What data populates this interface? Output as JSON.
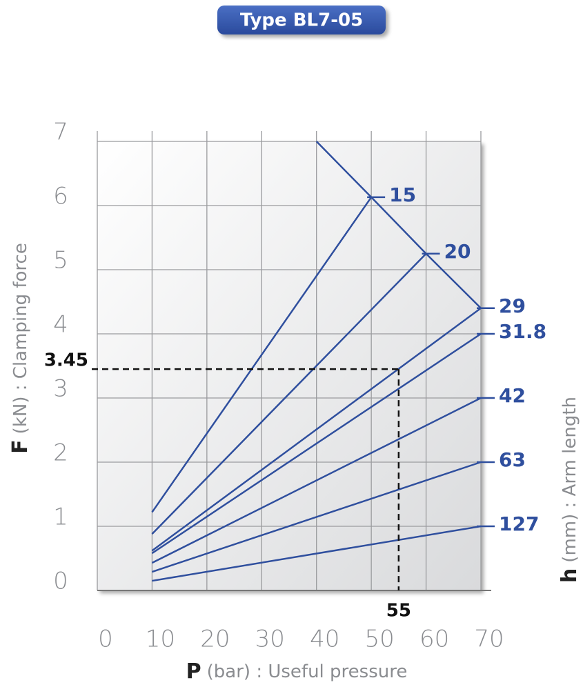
{
  "chart_data": {
    "type": "line",
    "title": "Type BL7-05",
    "y_label_symbol": "F",
    "y_label": "(kN) : Clamping force",
    "x_label_symbol": "P",
    "x_label": "(bar) : Useful pressure",
    "legend_title_symbol": "h",
    "legend_title": "(mm) : Arm length",
    "xlim": [
      0,
      70
    ],
    "ylim": [
      0,
      7
    ],
    "xticks": [
      0,
      10,
      20,
      30,
      40,
      50,
      60,
      70
    ],
    "yticks": [
      0,
      1,
      2,
      3,
      4,
      5,
      6,
      7
    ],
    "grid": true,
    "color": "#2f4f9e",
    "series": [
      {
        "name": "15",
        "x": [
          10,
          50
        ],
        "values": [
          1.22,
          6.13
        ]
      },
      {
        "name": "20",
        "x": [
          10,
          60
        ],
        "values": [
          0.88,
          5.25
        ]
      },
      {
        "name": "29",
        "x": [
          10,
          70
        ],
        "values": [
          0.62,
          4.4
        ]
      },
      {
        "name": "31.8",
        "x": [
          10,
          70
        ],
        "values": [
          0.58,
          4.0
        ]
      },
      {
        "name": "42",
        "x": [
          10,
          70
        ],
        "values": [
          0.43,
          3.0
        ]
      },
      {
        "name": "63",
        "x": [
          10,
          70
        ],
        "values": [
          0.29,
          2.0
        ]
      },
      {
        "name": "127",
        "x": [
          10,
          70
        ],
        "values": [
          0.15,
          1.0
        ]
      }
    ],
    "limit": {
      "x": [
        40,
        50,
        60,
        70
      ],
      "values": [
        7,
        6.13,
        5.25,
        4.4
      ]
    },
    "example": {
      "x": 55,
      "y": 3.45
    }
  }
}
